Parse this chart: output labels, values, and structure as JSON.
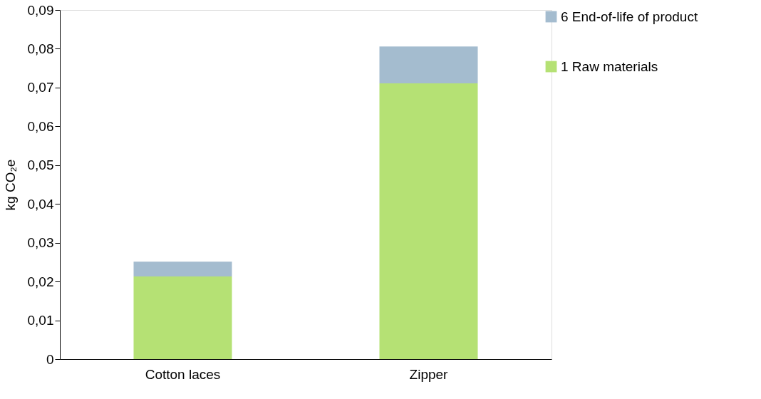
{
  "chart_data": {
    "type": "bar",
    "stacked": true,
    "ylabel": "kg CO₂e",
    "categories": [
      "Cotton laces",
      "Zipper"
    ],
    "series": [
      {
        "name": "1 Raw materials",
        "color": "#b5e174",
        "values": [
          0.0213,
          0.0711
        ]
      },
      {
        "name": "6 End-of-life of product",
        "color": "#a4bccf",
        "values": [
          0.0038,
          0.0095
        ]
      }
    ],
    "ylim": [
      0,
      0.09
    ],
    "yticks": [
      {
        "value": 0,
        "label": "0"
      },
      {
        "value": 0.01,
        "label": "0,01"
      },
      {
        "value": 0.02,
        "label": "0,02"
      },
      {
        "value": 0.03,
        "label": "0,03"
      },
      {
        "value": 0.04,
        "label": "0,04"
      },
      {
        "value": 0.05,
        "label": "0,05"
      },
      {
        "value": 0.06,
        "label": "0,06"
      },
      {
        "value": 0.07,
        "label": "0,07"
      },
      {
        "value": 0.08,
        "label": "0,08"
      },
      {
        "value": 0.09,
        "label": "0,09"
      }
    ],
    "grid": false,
    "legend": "right"
  }
}
